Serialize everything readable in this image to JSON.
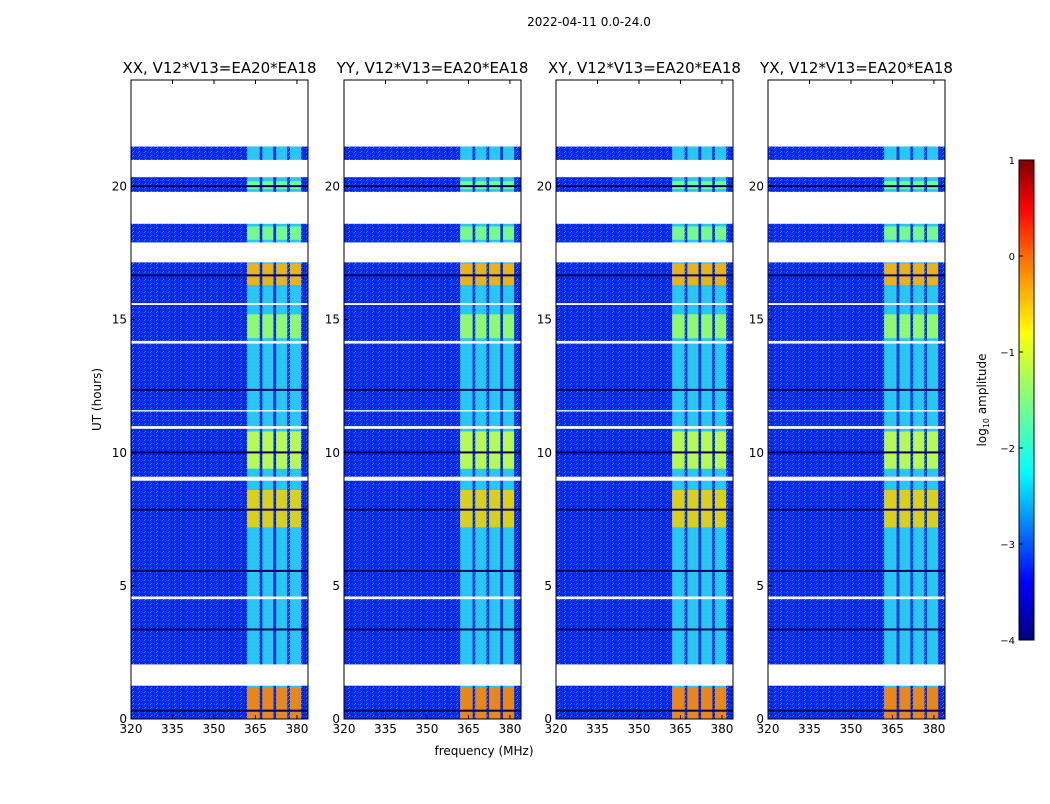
{
  "chart_data": [
    {
      "type": "heatmap",
      "title": "XX, V12*V13=EA20*EA18",
      "xlabel": "",
      "ylabel": "UT (hours)",
      "x_ticks": [
        "320",
        "335",
        "350",
        "365",
        "380"
      ],
      "y_ticks": [
        "0",
        "5",
        "10",
        "15",
        "20"
      ],
      "x_range_mhz": [
        320,
        384
      ],
      "y_range_hours": [
        0,
        24
      ],
      "value_note": "log10 amplitude; strong emission 362-380 MHz"
    },
    {
      "type": "heatmap",
      "title": "YY, V12*V13=EA20*EA18",
      "xlabel": "frequency (MHz)",
      "ylabel": "",
      "x_ticks": [
        "320",
        "335",
        "350",
        "365",
        "380"
      ],
      "y_ticks": [
        "0",
        "5",
        "10",
        "15",
        "20"
      ],
      "x_range_mhz": [
        320,
        384
      ],
      "y_range_hours": [
        0,
        24
      ]
    },
    {
      "type": "heatmap",
      "title": "XY, V12*V13=EA20*EA18",
      "xlabel": "",
      "ylabel": "",
      "x_ticks": [
        "320",
        "335",
        "350",
        "365",
        "380"
      ],
      "y_ticks": [
        "0",
        "5",
        "10",
        "15",
        "20"
      ],
      "x_range_mhz": [
        320,
        384
      ],
      "y_range_hours": [
        0,
        24
      ]
    },
    {
      "type": "heatmap",
      "title": "YX, V12*V13=EA20*EA18",
      "xlabel": "",
      "ylabel": "",
      "x_ticks": [
        "320",
        "335",
        "350",
        "365",
        "380"
      ],
      "y_ticks": [
        "0",
        "5",
        "10",
        "15",
        "20"
      ],
      "x_range_mhz": [
        320,
        384
      ],
      "y_range_hours": [
        0,
        24
      ]
    }
  ],
  "suptitle": "2022-04-11 0.0-24.0",
  "colorbar": {
    "label": "log10 amplitude",
    "label_base": "log",
    "label_sub": "10",
    "label_rest": " amplitude",
    "ticks": [
      "1",
      "0",
      "−1",
      "−2",
      "−3",
      "−4"
    ],
    "range": [
      -4,
      1
    ]
  },
  "colors": {
    "background": "#ffffff",
    "jet": [
      "#00007f",
      "#0000ff",
      "#007fff",
      "#00ffff",
      "#7fff7f",
      "#ffff00",
      "#ff7f00",
      "#ff0000",
      "#7f0000"
    ]
  }
}
